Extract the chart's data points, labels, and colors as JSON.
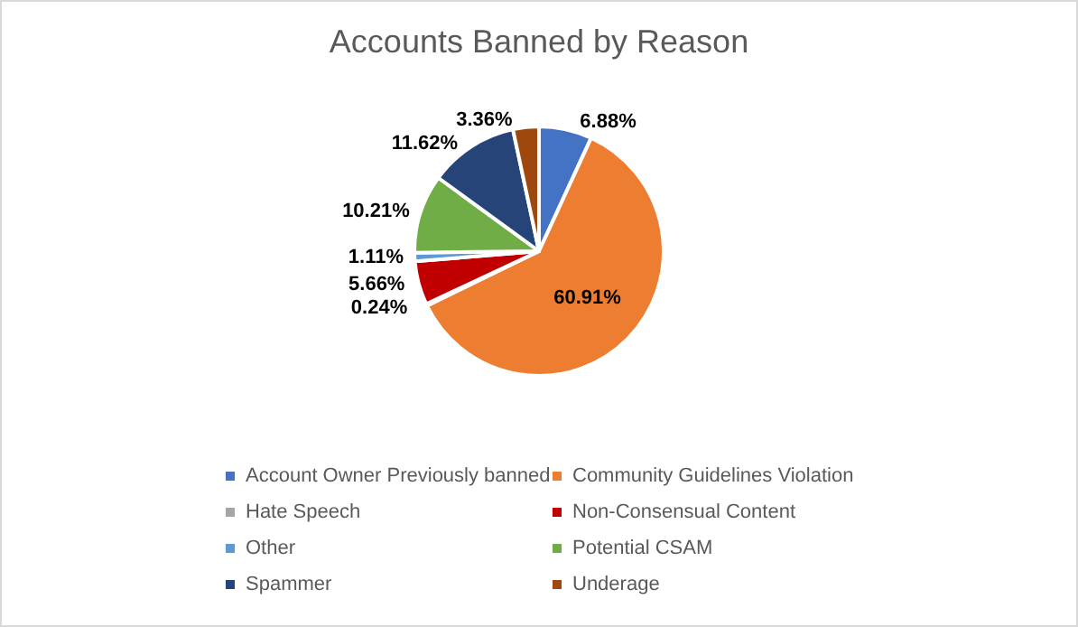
{
  "chart_data": {
    "type": "pie",
    "title": "Accounts Banned by Reason",
    "categories": [
      "Account Owner Previously banned",
      "Community Guidelines Violation",
      "Hate Speech",
      "Non-Consensual Content",
      "Other",
      "Potential CSAM",
      "Spammer",
      "Underage"
    ],
    "values": [
      6.88,
      60.91,
      0.24,
      5.66,
      1.11,
      10.21,
      11.62,
      3.36
    ],
    "value_labels": [
      "6.88%",
      "60.91%",
      "0.24%",
      "5.66%",
      "1.11%",
      "10.21%",
      "11.62%",
      "3.36%"
    ],
    "colors": [
      "#4472c4",
      "#ed7d31",
      "#a5a5a5",
      "#c00000",
      "#5b9bd5",
      "#70ad47",
      "#264478",
      "#9e480e"
    ],
    "legend": "bottom"
  }
}
